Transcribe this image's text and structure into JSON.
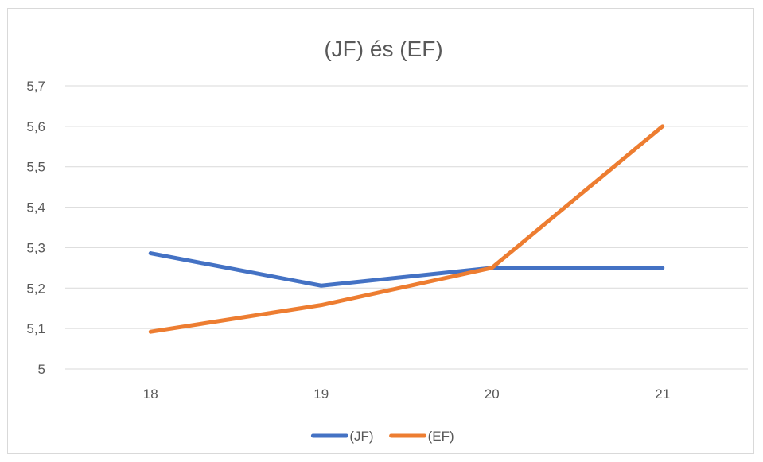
{
  "chart_data": {
    "type": "line",
    "title": "(JF) és (EF)",
    "xlabel": "",
    "ylabel": "",
    "categories": [
      "18",
      "19",
      "20",
      "21"
    ],
    "y_ticks": [
      "5",
      "5,1",
      "5,2",
      "5,3",
      "5,4",
      "5,5",
      "5,6",
      "5,7"
    ],
    "ylim": [
      5,
      5.7
    ],
    "grid": true,
    "legend_position": "bottom",
    "series": [
      {
        "name": "(JF)",
        "color": "#4472c4",
        "values": [
          5.286,
          5.206,
          5.25,
          5.25
        ]
      },
      {
        "name": "(EF)",
        "color": "#ed7d31",
        "values": [
          5.092,
          5.158,
          5.25,
          5.6
        ]
      }
    ]
  }
}
